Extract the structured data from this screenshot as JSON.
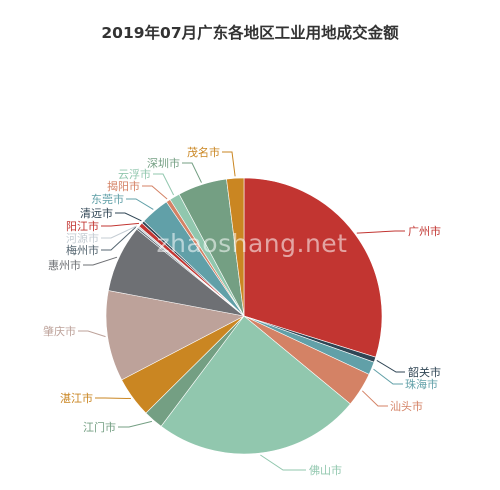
{
  "chart_data": {
    "type": "pie",
    "title": "2019年07月广东各地区工业用地成交金额",
    "watermark": "zhaoshang.net",
    "slices": [
      {
        "name": "广州市",
        "value": 29.5,
        "color": "#c23531"
      },
      {
        "name": "韶关市",
        "value": 0.6,
        "color": "#2f4554"
      },
      {
        "name": "珠海市",
        "value": 1.5,
        "color": "#61a0a8"
      },
      {
        "name": "汕头市",
        "value": 4.0,
        "color": "#d48265"
      },
      {
        "name": "佛山市",
        "value": 24.0,
        "color": "#91c7ae"
      },
      {
        "name": "江门市",
        "value": 2.3,
        "color": "#749f83"
      },
      {
        "name": "湛江市",
        "value": 4.7,
        "color": "#ca8622"
      },
      {
        "name": "肇庆市",
        "value": 10.5,
        "color": "#bda29a"
      },
      {
        "name": "惠州市",
        "value": 7.8,
        "color": "#6e7074"
      },
      {
        "name": "梅州市",
        "value": 0.2,
        "color": "#546570"
      },
      {
        "name": "河源市",
        "value": 0.2,
        "color": "#c4ccd3"
      },
      {
        "name": "阳江市",
        "value": 0.5,
        "color": "#c23531"
      },
      {
        "name": "清远市",
        "value": 0.3,
        "color": "#2f4554"
      },
      {
        "name": "东莞市",
        "value": 3.4,
        "color": "#61a0a8"
      },
      {
        "name": "揭阳市",
        "value": 0.5,
        "color": "#d48265"
      },
      {
        "name": "云浮市",
        "value": 1.2,
        "color": "#91c7ae"
      },
      {
        "name": "深圳市",
        "value": 5.7,
        "color": "#749f83"
      },
      {
        "name": "茂名市",
        "value": 2.0,
        "color": "#ca8622"
      }
    ]
  }
}
